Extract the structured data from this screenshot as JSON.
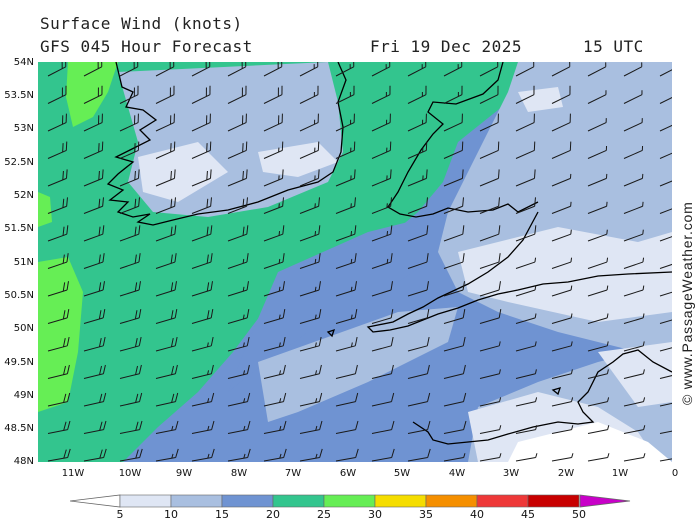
{
  "header": {
    "title": "Surface Wind (knots)",
    "forecast": "GFS 045 Hour Forecast",
    "date": "Fri 19 Dec 2025",
    "time": "15 UTC"
  },
  "map": {
    "lat_labels": [
      "54N",
      "53.5N",
      "53N",
      "52.5N",
      "52N",
      "51.5N",
      "51N",
      "50.5N",
      "50N",
      "49.5N",
      "49N",
      "48.5N",
      "48N"
    ],
    "lon_labels": [
      "11W",
      "10W",
      "9W",
      "8W",
      "7W",
      "6W",
      "5W",
      "4W",
      "3W",
      "2W",
      "1W",
      "0"
    ],
    "lat_range": [
      48,
      54
    ],
    "lon_range": [
      -11.7,
      0
    ],
    "barb_color": "#1a1a1a",
    "coast_color": "#000000",
    "wind_direction": "westerly"
  },
  "colorbar": {
    "labels": [
      "5",
      "10",
      "15",
      "20",
      "25",
      "30",
      "35",
      "40",
      "45",
      "50"
    ],
    "colors": [
      "#ffffff",
      "#dfe6f4",
      "#a9bfe0",
      "#6f93d2",
      "#33c58e",
      "#66ee55",
      "#f5dd00",
      "#f58f00",
      "#ee3838",
      "#c80000",
      "#c800c8"
    ]
  },
  "credit": "© www.PassageWeather.com"
}
